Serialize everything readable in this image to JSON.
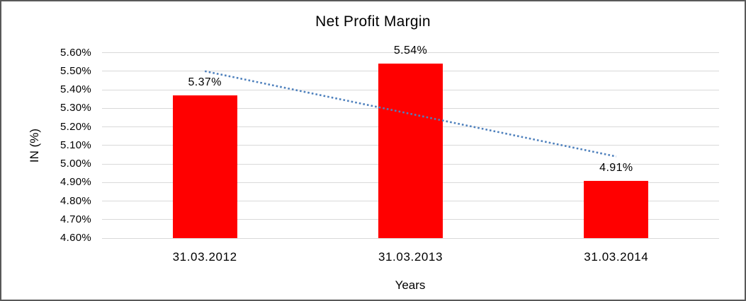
{
  "chart_data": {
    "type": "bar",
    "title": "Net Profit Margin",
    "xlabel": "Years",
    "ylabel": "IN (%)",
    "categories": [
      "31.03.2012",
      "31.03.2013",
      "31.03.2014"
    ],
    "values": [
      5.37,
      5.54,
      4.91
    ],
    "data_labels": [
      "5.37%",
      "5.54%",
      "4.91%"
    ],
    "ylim": [
      4.6,
      5.6
    ],
    "ytick_labels": [
      "5.60%",
      "5.50%",
      "5.40%",
      "5.30%",
      "5.20%",
      "5.10%",
      "5.00%",
      "4.90%",
      "4.80%",
      "4.70%",
      "4.60%"
    ],
    "grid": true,
    "legend": "none",
    "colors": {
      "bar": "#FF0000",
      "gridline": "#D9D9D9",
      "text": "#000000",
      "trendline": "#4F81BD",
      "frame_border": "#595959",
      "background": "#FFFFFF"
    },
    "trendline": {
      "type": "linear",
      "style": "dotted",
      "start_value": 5.5,
      "end_value": 5.04
    }
  }
}
